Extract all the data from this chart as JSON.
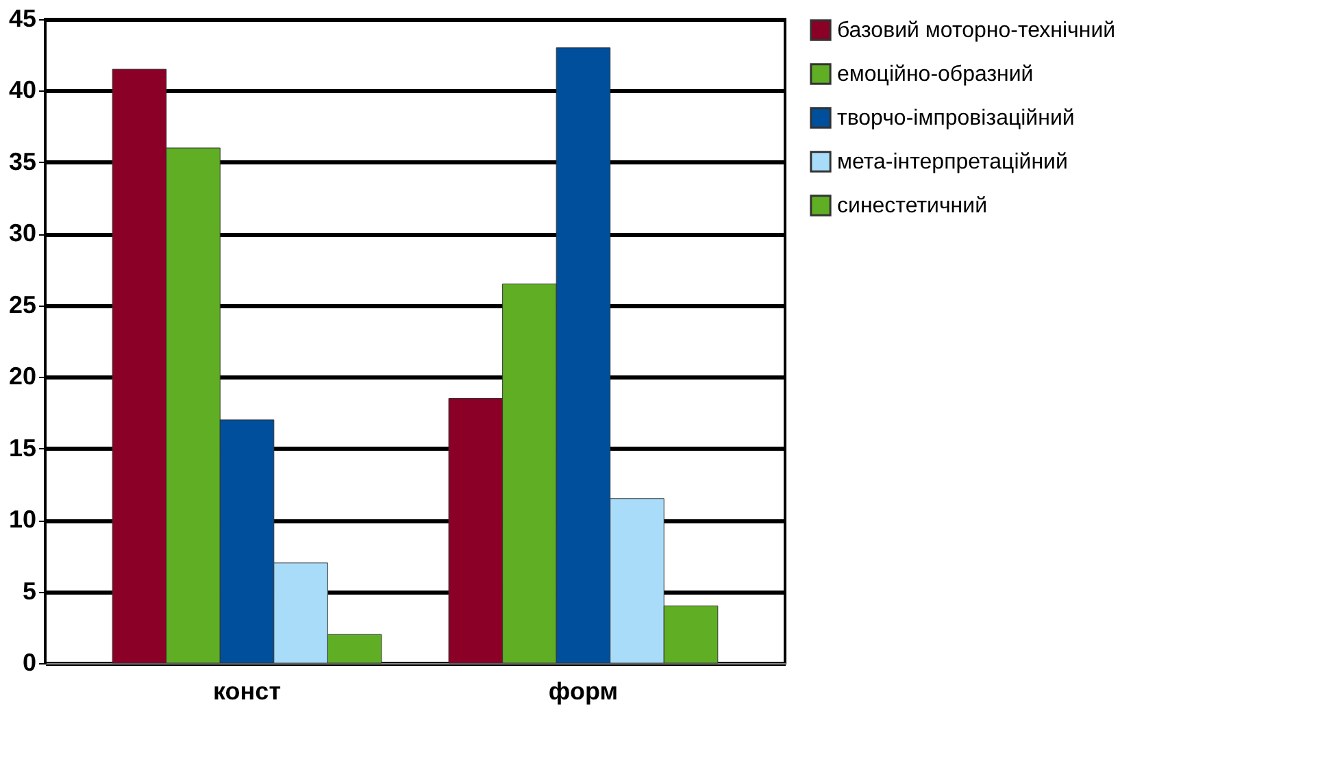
{
  "chart_data": {
    "type": "bar",
    "categories": [
      "конст",
      "форм"
    ],
    "series": [
      {
        "name": "базовий моторно-технічний",
        "color": "#8b0026",
        "values": [
          41.5,
          18.5
        ]
      },
      {
        "name": "емоційно-образний",
        "color": "#5fae24",
        "values": [
          36,
          26.5
        ]
      },
      {
        "name": "творчо-імпровізаційний",
        "color": "#004f9c",
        "values": [
          17,
          43
        ]
      },
      {
        "name": "мета-інтерпретаційний",
        "color": "#a9dcf8",
        "values": [
          7,
          11.5
        ]
      },
      {
        "name": "синестетичний",
        "color": "#5fae24",
        "values": [
          2,
          4
        ]
      }
    ],
    "ylim": [
      0,
      45
    ],
    "yticks": [
      0,
      5,
      10,
      15,
      20,
      25,
      30,
      35,
      40,
      45
    ],
    "grid": "y",
    "legend": "right"
  }
}
